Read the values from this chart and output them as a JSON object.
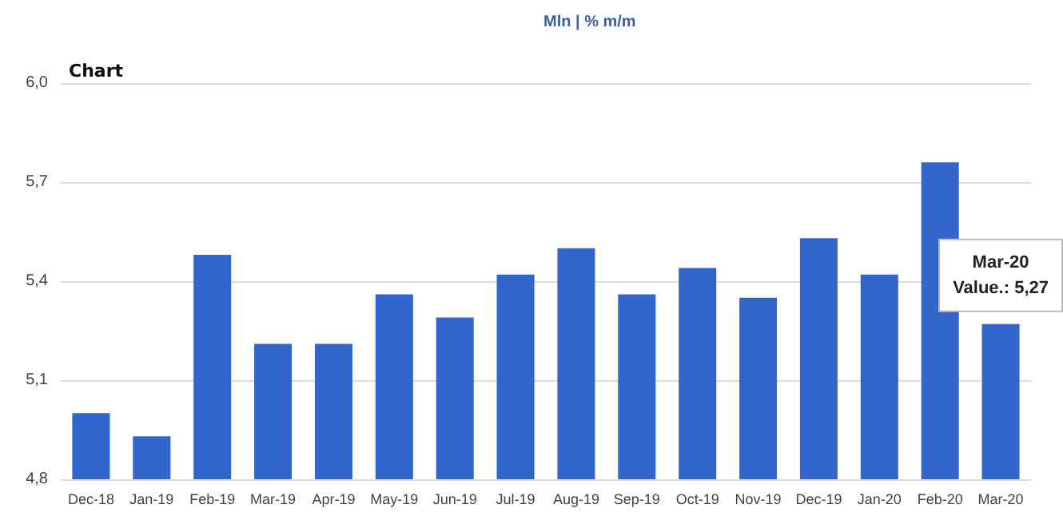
{
  "chart_data": {
    "type": "bar",
    "title": "Chart",
    "subtitle": "Mln | % m/m",
    "categories": [
      "Dec-18",
      "Jan-19",
      "Feb-19",
      "Mar-19",
      "Apr-19",
      "May-19",
      "Jun-19",
      "Jul-19",
      "Aug-19",
      "Sep-19",
      "Oct-19",
      "Nov-19",
      "Dec-19",
      "Jan-20",
      "Feb-20",
      "Mar-20"
    ],
    "values": [
      5.0,
      4.93,
      5.48,
      5.21,
      5.21,
      5.36,
      5.29,
      5.42,
      5.5,
      5.36,
      5.44,
      5.35,
      5.53,
      5.42,
      5.76,
      5.27
    ],
    "color": "#3366cc",
    "ylim": [
      4.8,
      6.0
    ],
    "yticks": [
      {
        "value": 4.8,
        "label": "4,8"
      },
      {
        "value": 5.1,
        "label": "5,1"
      },
      {
        "value": 5.4,
        "label": "5,4"
      },
      {
        "value": 5.7,
        "label": "5,7"
      },
      {
        "value": 6.0,
        "label": "6,0"
      }
    ],
    "grid": "y",
    "annotations": [
      {
        "text": "Mar-20\nValue.: 5,27",
        "x": "Mar-20",
        "y": 5.27
      }
    ]
  }
}
